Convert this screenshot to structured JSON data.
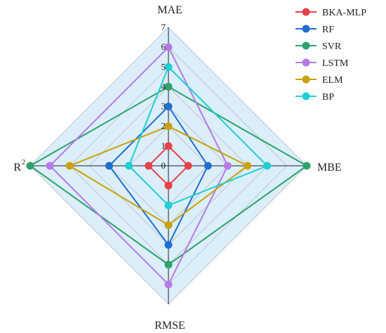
{
  "chart_data": {
    "type": "radar",
    "axes": [
      "MAE",
      "MBE",
      "RMSE",
      "R2"
    ],
    "axis_labels": {
      "top": "MAE",
      "right": "MBE",
      "bottom": "RMSE",
      "left": "R",
      "left_sup": "2"
    },
    "range": [
      0,
      7
    ],
    "ticks": [
      "0",
      "1",
      "2",
      "3",
      "4",
      "5",
      "6",
      "7"
    ],
    "grid": true,
    "legend_position": "top-right",
    "series": [
      {
        "name": "BKA-MLP",
        "values": [
          1,
          1,
          1,
          1
        ],
        "color": "#e8414a"
      },
      {
        "name": "RF",
        "values": [
          3,
          2,
          4,
          3
        ],
        "color": "#1f6fd0"
      },
      {
        "name": "SVR",
        "values": [
          4,
          7,
          5,
          7
        ],
        "color": "#2ea36b"
      },
      {
        "name": "LSTM",
        "values": [
          6,
          3,
          6,
          6
        ],
        "color": "#b57ae6"
      },
      {
        "name": "ELM",
        "values": [
          2,
          4,
          3,
          5
        ],
        "color": "#c9a00e"
      },
      {
        "name": "BP",
        "values": [
          5,
          5,
          2,
          2
        ],
        "color": "#1ecfd2"
      }
    ]
  }
}
